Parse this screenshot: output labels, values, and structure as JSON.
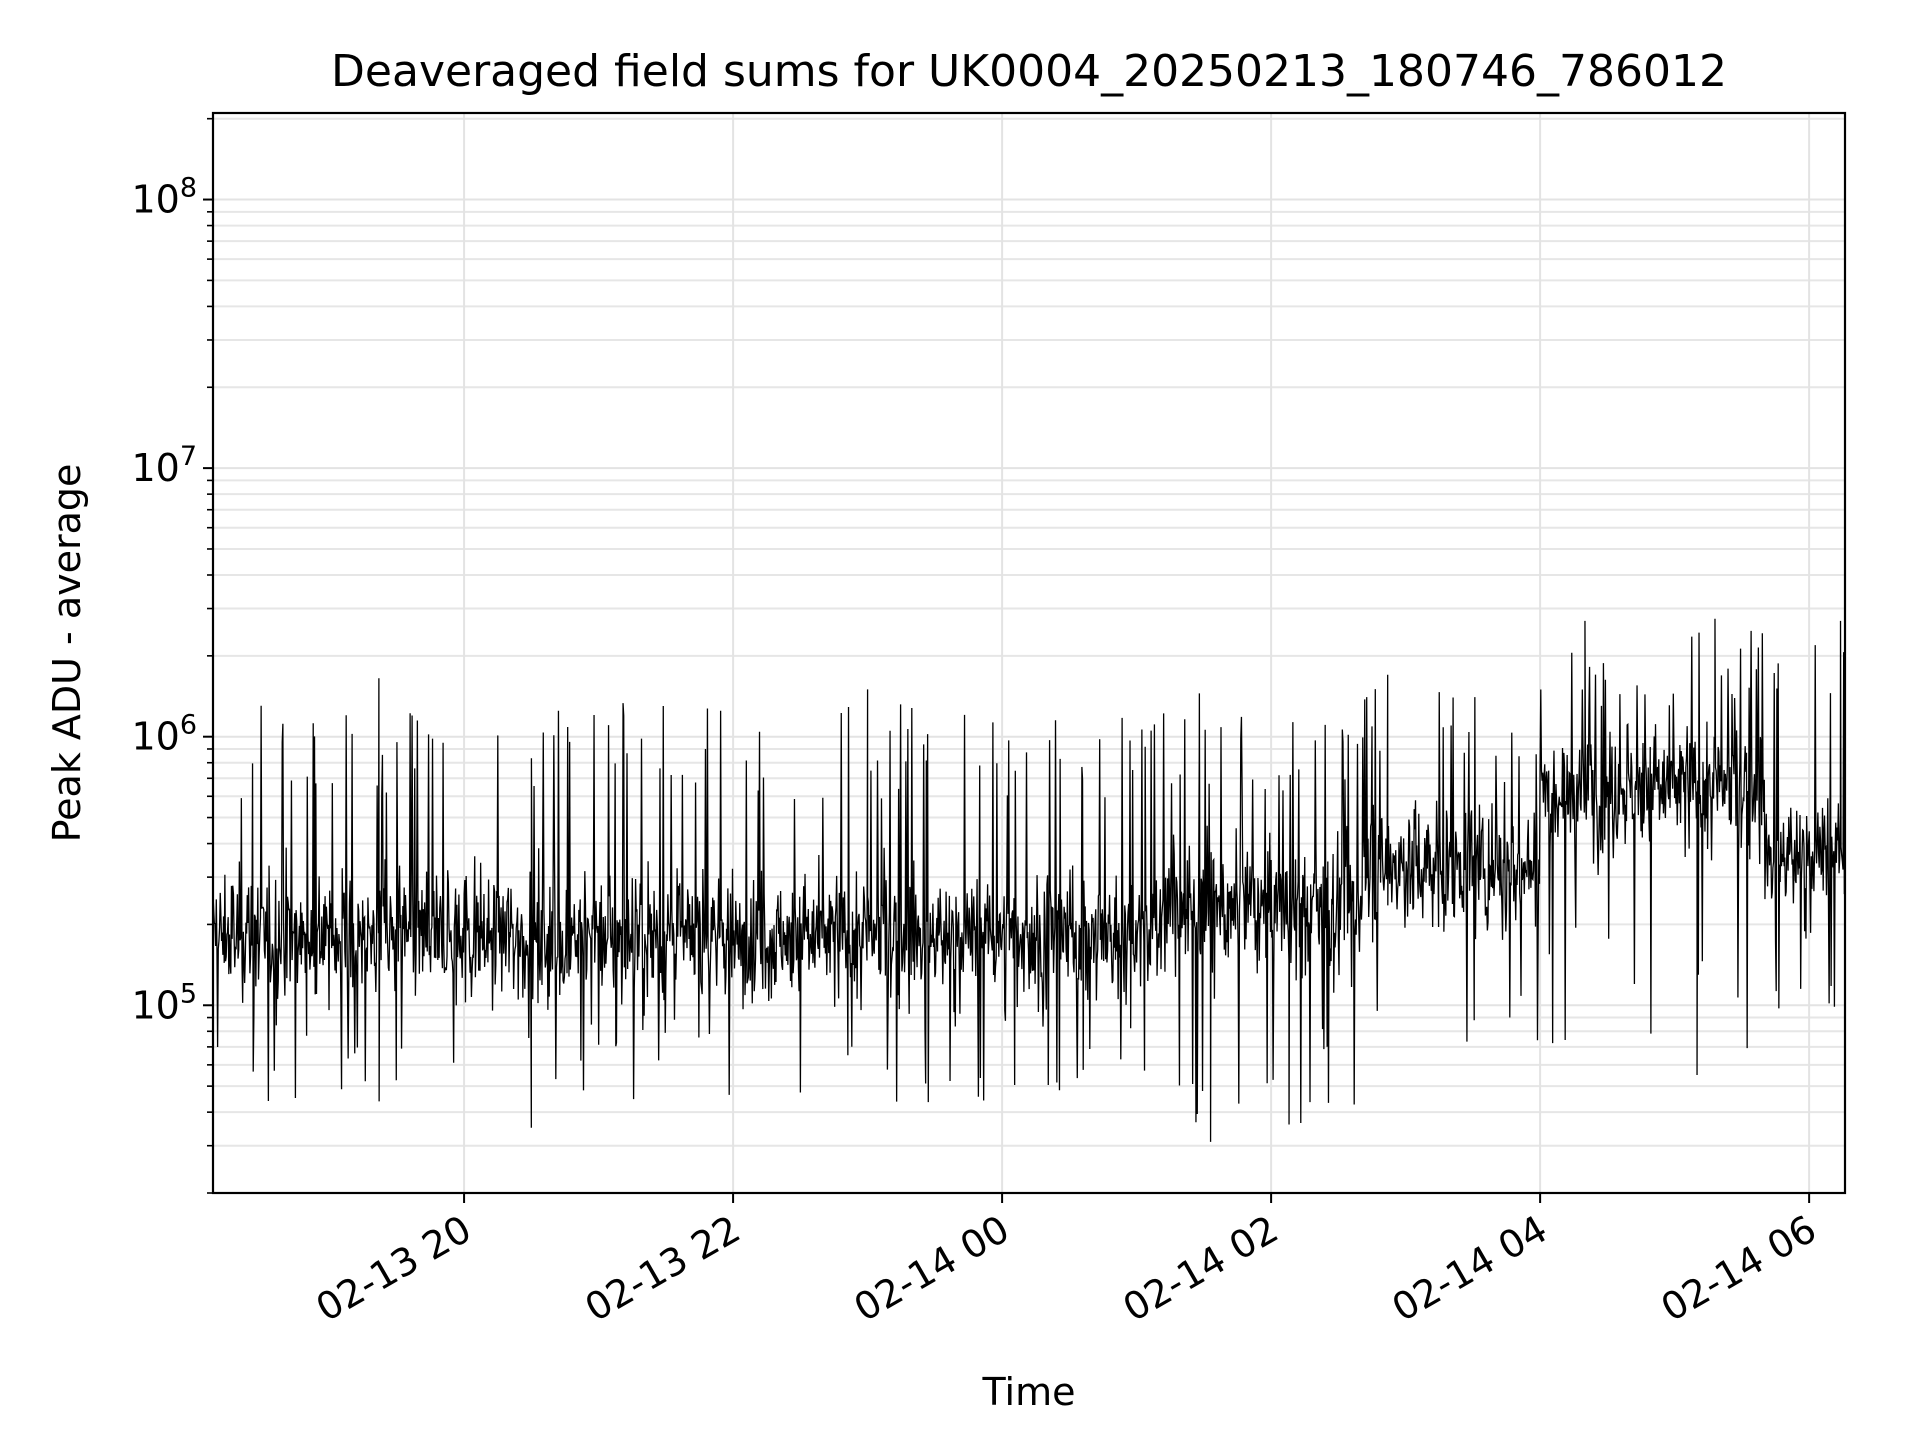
{
  "chart_data": {
    "type": "line",
    "title": "Deaveraged field sums for UK0004_20250213_180746_786012",
    "xlabel": "Time",
    "ylabel": "Peak ADU - average",
    "x_range": [
      "2025-02-13 18:08",
      "2025-02-14 06:16"
    ],
    "y_scale": "log",
    "ylim": [
      20000,
      210000000
    ],
    "grid": true,
    "grid_minor_y": true,
    "line_color": "#000000",
    "x_ticks": [
      {
        "value": "2025-02-13 20:00",
        "label": "02-13 20"
      },
      {
        "value": "2025-02-13 22:00",
        "label": "02-13 22"
      },
      {
        "value": "2025-02-14 00:00",
        "label": "02-14 00"
      },
      {
        "value": "2025-02-14 02:00",
        "label": "02-14 02"
      },
      {
        "value": "2025-02-14 04:00",
        "label": "02-14 04"
      },
      {
        "value": "2025-02-14 06:00",
        "label": "02-14 06"
      }
    ],
    "y_ticks": [
      {
        "value": 100000,
        "base": "10",
        "exp": "5"
      },
      {
        "value": 1000000,
        "base": "10",
        "exp": "6"
      },
      {
        "value": 10000000,
        "base": "10",
        "exp": "7"
      },
      {
        "value": 100000000,
        "base": "10",
        "exp": "8"
      }
    ],
    "series": [
      {
        "segments": [
          {
            "start": "2025-02-13 18:08",
            "end": "2025-02-14 01:10",
            "median": 180000,
            "lo": 40000,
            "hi": 1500000
          },
          {
            "start": "2025-02-14 01:10",
            "end": "2025-02-14 02:40",
            "median": 230000,
            "lo": 33000,
            "hi": 1400000
          },
          {
            "start": "2025-02-14 02:40",
            "end": "2025-02-14 04:00",
            "median": 330000,
            "lo": 50000,
            "hi": 1800000
          },
          {
            "start": "2025-02-14 04:00",
            "end": "2025-02-14 05:40",
            "median": 650000,
            "lo": 60000,
            "hi": 2700000
          },
          {
            "start": "2025-02-14 05:40",
            "end": "2025-02-14 06:16",
            "median": 360000,
            "lo": 90000,
            "hi": 2700000
          }
        ],
        "peaks": [
          {
            "x": "2025-02-13 19:22",
            "y": 1650000
          },
          {
            "x": "2025-02-13 23:00",
            "y": 1500000
          },
          {
            "x": "2025-02-14 01:28",
            "y": 1450000
          },
          {
            "x": "2025-02-14 02:52",
            "y": 1700000
          },
          {
            "x": "2025-02-14 04:20",
            "y": 2700000
          },
          {
            "x": "2025-02-14 05:18",
            "y": 2750000
          },
          {
            "x": "2025-02-14 06:14",
            "y": 2700000
          }
        ],
        "troughs": [
          {
            "x": "2025-02-13 20:30",
            "y": 35000
          },
          {
            "x": "2025-02-14 01:33",
            "y": 31000
          },
          {
            "x": "2025-02-14 02:08",
            "y": 36000
          },
          {
            "x": "2025-02-14 05:10",
            "y": 55000
          }
        ]
      }
    ]
  }
}
